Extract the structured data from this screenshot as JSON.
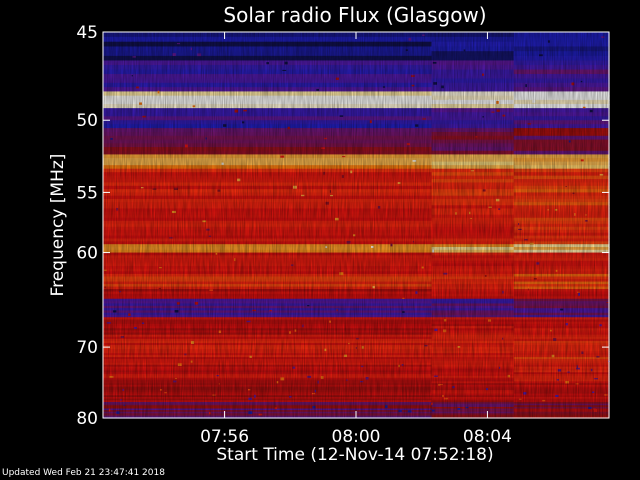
{
  "chart_data": {
    "type": "heatmap",
    "title": "Solar radio Flux (Glasgow)",
    "xlabel": "Start Time (12-Nov-14 07:52:18)",
    "ylabel": "Frequency [MHz]",
    "xlim_minutes": [
      52.3,
      67.7
    ],
    "ylim_mhz": [
      45,
      80
    ],
    "y_ticks": [
      {
        "value": 45,
        "label": "45"
      },
      {
        "value": 50,
        "label": "50"
      },
      {
        "value": 55,
        "label": "55"
      },
      {
        "value": 60,
        "label": "60"
      },
      {
        "value": 70,
        "label": "70"
      },
      {
        "value": 80,
        "label": "80"
      }
    ],
    "x_ticks": [
      {
        "value": 56,
        "label": "07:56"
      },
      {
        "value": 60,
        "label": "08:00"
      },
      {
        "value": 64,
        "label": "08:04"
      }
    ],
    "colormap": [
      "#10104a",
      "#2020c0",
      "#5a1aa8",
      "#a01010",
      "#e01010",
      "#ff3010",
      "#ff8a10",
      "#ffe080",
      "#ffffff"
    ],
    "frequency_bands": [
      {
        "from": 45,
        "to": 46.5,
        "level": 0.05
      },
      {
        "from": 46.5,
        "to": 48.2,
        "level": 0.18
      },
      {
        "from": 48.2,
        "to": 49.3,
        "level": 0.95
      },
      {
        "from": 49.3,
        "to": 50.6,
        "level": 0.2
      },
      {
        "from": 50.6,
        "to": 52.3,
        "level": 0.3
      },
      {
        "from": 52.3,
        "to": 53.2,
        "level": 0.78
      },
      {
        "from": 53.2,
        "to": 56.0,
        "level": 0.58
      },
      {
        "from": 56.0,
        "to": 59.3,
        "level": 0.55
      },
      {
        "from": 59.3,
        "to": 60.0,
        "level": 0.8
      },
      {
        "from": 60.0,
        "to": 62.0,
        "level": 0.52
      },
      {
        "from": 62.0,
        "to": 63.5,
        "level": 0.6
      },
      {
        "from": 63.5,
        "to": 64.5,
        "level": 0.45
      },
      {
        "from": 64.5,
        "to": 66.5,
        "level": 0.22
      },
      {
        "from": 66.5,
        "to": 68.5,
        "level": 0.48
      },
      {
        "from": 68.5,
        "to": 71.5,
        "level": 0.55
      },
      {
        "from": 71.5,
        "to": 74.5,
        "level": 0.5
      },
      {
        "from": 74.5,
        "to": 77.5,
        "level": 0.45
      },
      {
        "from": 77.5,
        "to": 80.0,
        "level": 0.32
      }
    ]
  },
  "footer": {
    "updated": "Updated Wed Feb 21 23:47:41 2018"
  }
}
